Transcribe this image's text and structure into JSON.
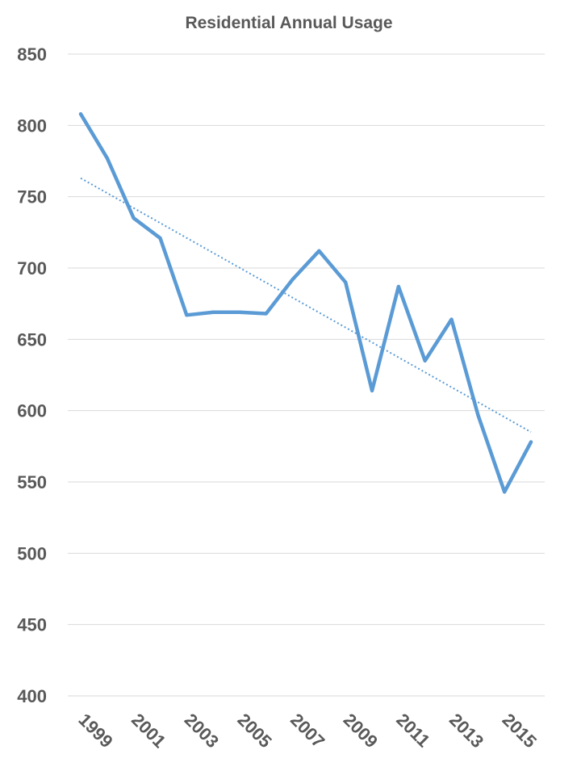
{
  "chart_data": {
    "type": "line",
    "title": "Residential Annual Usage",
    "xlabel": "",
    "ylabel": "",
    "x": [
      1999,
      2000,
      2001,
      2002,
      2003,
      2004,
      2005,
      2006,
      2007,
      2008,
      2009,
      2010,
      2011,
      2012,
      2013,
      2014,
      2015,
      2016
    ],
    "x_tick_labels": [
      "1999",
      "2001",
      "2003",
      "2005",
      "2007",
      "2009",
      "2011",
      "2013",
      "2015"
    ],
    "ylim": [
      400,
      850
    ],
    "y_ticks": [
      400,
      450,
      500,
      550,
      600,
      650,
      700,
      750,
      800,
      850
    ],
    "grid": true,
    "series": [
      {
        "values": [
          808,
          777,
          735,
          721,
          667,
          669,
          669,
          668,
          692,
          712,
          690,
          614,
          687,
          635,
          664,
          597,
          543,
          578
        ],
        "color": "#5b9bd5"
      }
    ],
    "trendline": {
      "type": "linear",
      "start": [
        1999,
        763
      ],
      "end": [
        2016,
        585
      ],
      "color": "#5b9bd5",
      "style": "dotted"
    }
  }
}
